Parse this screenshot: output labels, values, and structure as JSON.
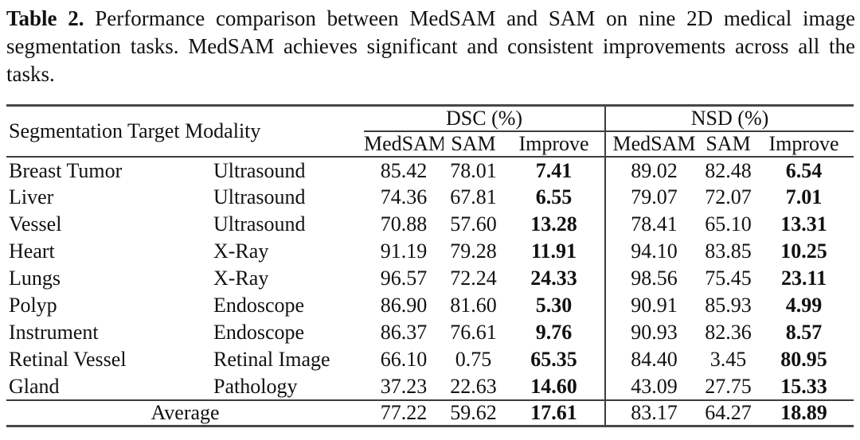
{
  "caption": {
    "label": "Table 2.",
    "text": "Performance comparison between MedSAM and SAM on nine 2D medical image segmentation tasks. MedSAM achieves significant and consistent improvements across all the tasks."
  },
  "table": {
    "header": {
      "group_left": "Segmentation Target Modality",
      "group_dsc": "DSC (%)",
      "group_nsd": "NSD (%)",
      "sub": [
        "MedSAM",
        "SAM",
        "Improve",
        "MedSAM",
        "SAM",
        "Improve"
      ]
    },
    "rows": [
      {
        "target": "Breast Tumor",
        "modality": "Ultrasound",
        "dsc_medsam": "85.42",
        "dsc_sam": "78.01",
        "dsc_improve": "7.41",
        "nsd_medsam": "89.02",
        "nsd_sam": "82.48",
        "nsd_improve": "6.54"
      },
      {
        "target": "Liver",
        "modality": "Ultrasound",
        "dsc_medsam": "74.36",
        "dsc_sam": "67.81",
        "dsc_improve": "6.55",
        "nsd_medsam": "79.07",
        "nsd_sam": "72.07",
        "nsd_improve": "7.01"
      },
      {
        "target": "Vessel",
        "modality": "Ultrasound",
        "dsc_medsam": "70.88",
        "dsc_sam": "57.60",
        "dsc_improve": "13.28",
        "nsd_medsam": "78.41",
        "nsd_sam": "65.10",
        "nsd_improve": "13.31"
      },
      {
        "target": "Heart",
        "modality": "X-Ray",
        "dsc_medsam": "91.19",
        "dsc_sam": "79.28",
        "dsc_improve": "11.91",
        "nsd_medsam": "94.10",
        "nsd_sam": "83.85",
        "nsd_improve": "10.25"
      },
      {
        "target": "Lungs",
        "modality": "X-Ray",
        "dsc_medsam": "96.57",
        "dsc_sam": "72.24",
        "dsc_improve": "24.33",
        "nsd_medsam": "98.56",
        "nsd_sam": "75.45",
        "nsd_improve": "23.11"
      },
      {
        "target": "Polyp",
        "modality": "Endoscope",
        "dsc_medsam": "86.90",
        "dsc_sam": "81.60",
        "dsc_improve": "5.30",
        "nsd_medsam": "90.91",
        "nsd_sam": "85.93",
        "nsd_improve": "4.99"
      },
      {
        "target": "Instrument",
        "modality": "Endoscope",
        "dsc_medsam": "86.37",
        "dsc_sam": "76.61",
        "dsc_improve": "9.76",
        "nsd_medsam": "90.93",
        "nsd_sam": "82.36",
        "nsd_improve": "8.57"
      },
      {
        "target": "Retinal Vessel",
        "modality": "Retinal Image",
        "dsc_medsam": "66.10",
        "dsc_sam": "0.75",
        "dsc_improve": "65.35",
        "nsd_medsam": "84.40",
        "nsd_sam": "3.45",
        "nsd_improve": "80.95"
      },
      {
        "target": "Gland",
        "modality": "Pathology",
        "dsc_medsam": "37.23",
        "dsc_sam": "22.63",
        "dsc_improve": "14.60",
        "nsd_medsam": "43.09",
        "nsd_sam": "27.75",
        "nsd_improve": "15.33"
      }
    ],
    "average": {
      "label": "Average",
      "dsc_medsam": "77.22",
      "dsc_sam": "59.62",
      "dsc_improve": "17.61",
      "nsd_medsam": "83.17",
      "nsd_sam": "64.27",
      "nsd_improve": "18.89"
    }
  },
  "colors": {
    "background": "#ffffff",
    "text": "#111111",
    "rule": "#3d3d3d"
  }
}
